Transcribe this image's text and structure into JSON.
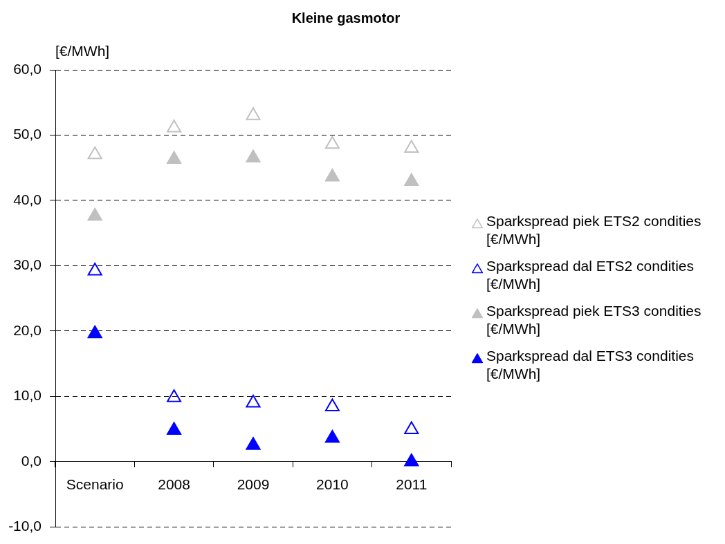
{
  "chart_data": {
    "type": "scatter",
    "title": "Kleine gasmotor",
    "ylabel": "[€/MWh]",
    "categories": [
      "Scenario",
      "2008",
      "2009",
      "2010",
      "2011"
    ],
    "series": [
      {
        "name": "Sparkspread piek ETS2 condities [€/MWh]",
        "color": "#c0c0c0",
        "marker": "triangle-open",
        "values": [
          47.0,
          51.1,
          53.0,
          48.6,
          48.0
        ]
      },
      {
        "name": "Sparkspread dal ETS2 condities [€/MWh]",
        "color": "#0000ff",
        "marker": "triangle-open",
        "values": [
          29.2,
          9.8,
          9.0,
          8.4,
          4.9
        ]
      },
      {
        "name": "Sparkspread piek ETS3 condities [€/MWh]",
        "color": "#c0c0c0",
        "marker": "triangle",
        "values": [
          37.6,
          46.3,
          46.5,
          43.6,
          42.9
        ]
      },
      {
        "name": "Sparkspread dal ETS3 condities [€/MWh]",
        "color": "#0000ff",
        "marker": "triangle",
        "values": [
          19.6,
          4.8,
          2.5,
          3.6,
          0.0
        ]
      }
    ],
    "ylim": [
      -10,
      60
    ],
    "yticks": [
      {
        "value": -10,
        "label": "-10,0"
      },
      {
        "value": 0,
        "label": "0,0"
      },
      {
        "value": 10,
        "label": "10,0"
      },
      {
        "value": 20,
        "label": "20,0"
      },
      {
        "value": 30,
        "label": "30,0"
      },
      {
        "value": 40,
        "label": "40,0"
      },
      {
        "value": 50,
        "label": "50,0"
      },
      {
        "value": 60,
        "label": "60,0"
      }
    ],
    "grid": "y",
    "legend": "right"
  }
}
